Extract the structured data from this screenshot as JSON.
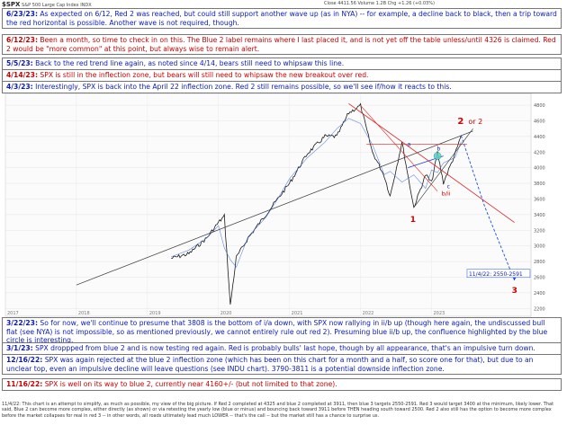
{
  "header": {
    "symbol": "$SPX",
    "name": "S&P 500 Large Cap Index",
    "exchange": "INDX",
    "quote": "Close 4411.56  Volume 1.2B  Chg +1.26 (+0.03%)"
  },
  "annotations_top": [
    {
      "date": "6/23/23:",
      "color": "blue",
      "text": " As expected on 6/12, Red 2 was reached, but could still support another wave up (as in NYA) -- for example, a decline back to black, then a trip toward the red horizontal is possible.  Another wave is not required, though."
    },
    {
      "date": "6/12/23:",
      "color": "red",
      "text": " Been a month, so time to check in on this.  The Blue 2 label remains where I last placed it, and is not yet off the table unless/until 4326 is claimed.  Red 2 would be \"more common\" at this point, but always wise to remain alert."
    },
    {
      "date": "5/5/23:",
      "color": "blue",
      "text": " Back to the red trend line again, as noted since 4/14, bears still need to whipsaw this line."
    },
    {
      "date": "4/14/23:",
      "color": "red",
      "text": " SPX is still in the inflection zone, but bears will still need to whipsaw the new breakout over red."
    },
    {
      "date": "4/3/23:",
      "color": "blue",
      "text": " Interestingly, SPX is back into the April 22 inflection zone.  Red 2 still remains possible, so we'll see if/how it reacts to this."
    }
  ],
  "annotations_bottom": [
    {
      "date": "3/22/23:",
      "color": "blue",
      "text": " So for now, we'll continue to presume that 3808 is the bottom of i/a down, with SPX now rallying in ii/b up (though here again, the undiscussed bull flat (see NYA) is not impossible, so as mentioned previously, we cannot entirely rule out red 2).  Presuming blue ii/b up, the confluence highlighted by the blue circle is interesting."
    },
    {
      "date": "3/1/23:",
      "color": "blue",
      "text": " SPX droppped from blue 2 and is now testing red again.  Red is probably bulls' last hope, though by all appearance, that's an impulsive turn down."
    },
    {
      "date": "12/16/22:",
      "color": "blue",
      "text": " SPX was again rejected at the blue 2 inflection zone (which has been on this chart for a month and a half, so score one for that), but due to an unclear top, even an impulsive decline will leave questions (see INDU chart). 3790-3811 is a potential downside inflection zone."
    },
    {
      "date": "11/16/22:",
      "color": "red",
      "text": " SPX is well on its way to blue 2, currently near 4160+/- (but not limited to that zone)."
    }
  ],
  "footer": "11/4/22: This chart is an attempt to simplify, as much as possible, my view of the big picture.  If Red 2 completed at 4325 and blue 2 completed at 3911, then blue 3 targets 2550-2591.  Red 3 would target 3400 at the minimum, likely lower.  That said, Blue 2 can become more complex, either directly (as shown) or via retesting the yearly low (blue or minus) and bouncing back toward 3911 before THEN heading south toward 2500.  Red 2 also still has the option to become more complex before the market collapses for real in red 3 -- in other words, all roads ultimately lead much LOWER -- that's the call -- but the market still has a chance to surprise us.",
  "chart_data": {
    "type": "line",
    "title": "",
    "series": [
      {
        "name": "$SPX",
        "values": [
          [
            "2019-05",
            2840
          ],
          [
            "2019-08",
            2900
          ],
          [
            "2019-11",
            3100
          ],
          [
            "2020-01",
            3300
          ],
          [
            "2020-02",
            3380
          ],
          [
            "2020-03",
            2237
          ],
          [
            "2020-04",
            2850
          ],
          [
            "2020-06",
            3100
          ],
          [
            "2020-09",
            3400
          ],
          [
            "2020-11",
            3600
          ],
          [
            "2021-01",
            3800
          ],
          [
            "2021-04",
            4180
          ],
          [
            "2021-07",
            4400
          ],
          [
            "2021-09",
            4400
          ],
          [
            "2021-11",
            4700
          ],
          [
            "2022-01",
            4796
          ],
          [
            "2022-03",
            4200
          ],
          [
            "2022-05",
            3900
          ],
          [
            "2022-06",
            3636
          ],
          [
            "2022-08",
            4325
          ],
          [
            "2022-10",
            3491
          ],
          [
            "2022-12",
            3911
          ],
          [
            "2023-01",
            3808
          ],
          [
            "2023-02",
            4195
          ],
          [
            "2023-03",
            3808
          ],
          [
            "2023-05",
            4180
          ],
          [
            "2023-06",
            4411
          ]
        ]
      }
    ],
    "projection": [
      [
        "2023-06",
        4411
      ],
      [
        "2023-10",
        3500
      ],
      [
        "2024-03",
        2560
      ]
    ],
    "wave_labels": [
      {
        "label": "1",
        "color": "red"
      },
      {
        "label": "2",
        "color": "red"
      },
      {
        "label": "or 2",
        "color": "red"
      },
      {
        "label": "3",
        "color": "red"
      },
      {
        "label": "b/ii",
        "color": "red"
      },
      {
        "label": "a",
        "color": "blue"
      },
      {
        "label": "b",
        "color": "blue"
      },
      {
        "label": "c",
        "color": "blue"
      }
    ],
    "target_label": "11/4/22: 2550-2591",
    "y_ticks": [
      2200,
      2400,
      2600,
      2800,
      3000,
      3200,
      3400,
      3600,
      3800,
      4000,
      4200,
      4400,
      4600,
      4800
    ],
    "x_ticks": [
      "2017",
      "2018",
      "2019",
      "2020",
      "2021",
      "2022",
      "2023"
    ]
  }
}
